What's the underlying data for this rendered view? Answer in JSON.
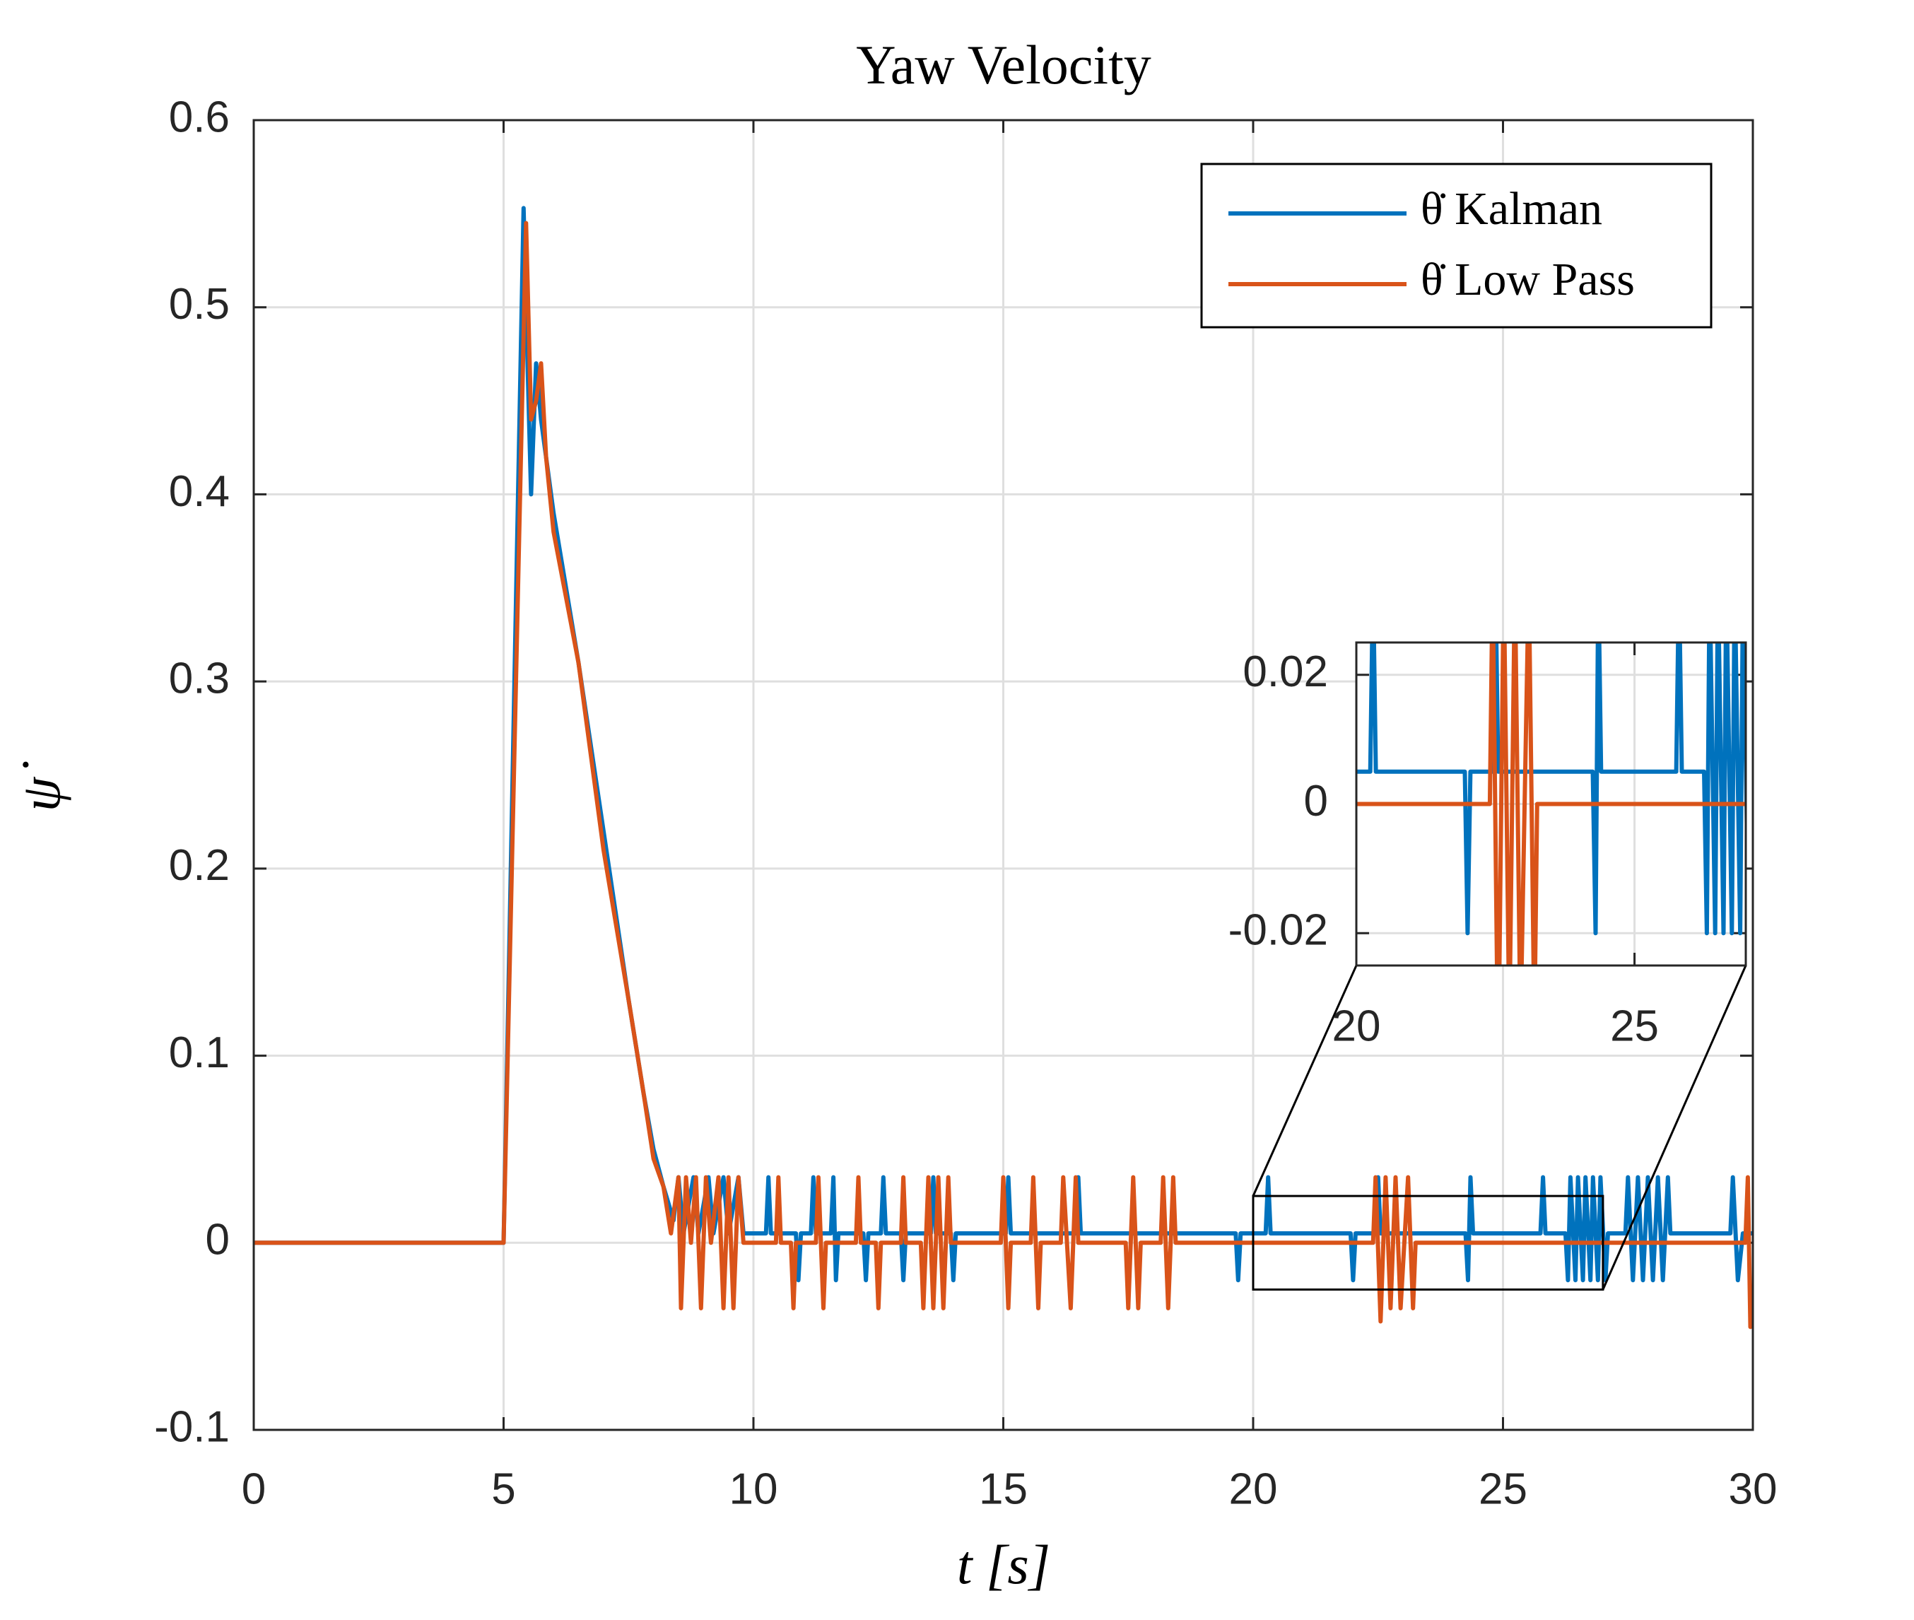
{
  "chart_data": {
    "type": "line",
    "title": "Yaw Velocity",
    "x_label": "t [s]",
    "y_label": "ψ̇",
    "xlim": [
      0,
      30
    ],
    "ylim": [
      -0.1,
      0.6
    ],
    "xticks": [
      0,
      5,
      10,
      15,
      20,
      25,
      30
    ],
    "yticks": [
      -0.1,
      0,
      0.1,
      0.2,
      0.3,
      0.4,
      0.5,
      0.6
    ],
    "grid": true,
    "legend": "upper right",
    "series": [
      {
        "name": "θ̇ Kalman",
        "color": "#0072BD",
        "x": [
          0,
          5,
          5.4,
          5.5,
          5.55,
          5.65,
          5.75,
          6,
          6.5,
          7,
          7.5,
          7.8,
          8,
          8.2,
          8.4,
          8.5,
          8.6,
          8.8,
          8.9,
          9.1,
          9.2,
          9.4,
          9.5,
          9.7,
          9.8,
          10.25,
          10.3,
          10.35,
          10.85,
          10.9,
          10.95,
          11.15,
          11.2,
          11.25,
          11.55,
          11.6,
          11.65,
          11.7,
          12.2,
          12.25,
          12.3,
          12.55,
          12.6,
          12.65,
          12.95,
          13,
          13.05,
          13.55,
          13.6,
          13.65,
          13.95,
          14,
          14.05,
          15.05,
          15.1,
          15.15,
          16.45,
          16.5,
          16.55,
          19.65,
          19.7,
          19.75,
          20.25,
          20.3,
          20.35,
          21.95,
          22,
          22.05,
          22.45,
          22.5,
          22.55,
          24.25,
          24.3,
          24.35,
          24.4,
          25.75,
          25.8,
          25.85,
          26.25,
          26.3,
          26.35,
          26.45,
          26.5,
          26.6,
          26.65,
          26.75,
          26.8,
          26.9,
          26.95,
          27.05,
          27.1,
          27.45,
          27.5,
          27.6,
          27.7,
          27.8,
          27.9,
          28,
          28.1,
          28.2,
          28.3,
          28.35,
          29.55,
          29.6,
          29.7,
          29.8,
          30
        ],
        "values": [
          0,
          0,
          0.553,
          0.45,
          0.4,
          0.47,
          0.44,
          0.39,
          0.31,
          0.22,
          0.13,
          0.08,
          0.05,
          0.03,
          0.012,
          0.035,
          0.005,
          0.035,
          0.005,
          0.035,
          0.005,
          0.035,
          0.005,
          0.035,
          0.005,
          0.005,
          0.035,
          0.005,
          0.005,
          -0.02,
          0.005,
          0.005,
          0.035,
          0.005,
          0.005,
          0.035,
          -0.02,
          0.005,
          0.005,
          -0.02,
          0.005,
          0.005,
          0.035,
          0.005,
          0.005,
          -0.02,
          0.005,
          0.005,
          0.035,
          0.005,
          0.005,
          -0.02,
          0.005,
          0.005,
          0.035,
          0.005,
          0.005,
          0.035,
          0.005,
          0.005,
          -0.02,
          0.005,
          0.005,
          0.035,
          0.005,
          0.005,
          -0.02,
          0.005,
          0.005,
          0.035,
          0.005,
          0.005,
          -0.02,
          0.035,
          0.005,
          0.005,
          0.035,
          0.005,
          0.005,
          -0.02,
          0.035,
          -0.02,
          0.035,
          -0.02,
          0.035,
          -0.02,
          0.035,
          -0.02,
          0.035,
          -0.02,
          0.005,
          0.005,
          0.035,
          -0.02,
          0.035,
          -0.02,
          0.035,
          -0.02,
          0.035,
          -0.02,
          0.035,
          0.005,
          0.005,
          0.035,
          -0.02,
          0.005,
          0.005
        ]
      },
      {
        "name": "θ̇ Low Pass",
        "color": "#D95319",
        "x": [
          0,
          5,
          5.45,
          5.55,
          5.65,
          5.75,
          5.85,
          6,
          6.5,
          7,
          7.5,
          7.8,
          8,
          8.2,
          8.35,
          8.5,
          8.55,
          8.65,
          8.75,
          8.85,
          8.95,
          9.05,
          9.15,
          9.3,
          9.4,
          9.5,
          9.6,
          9.7,
          9.8,
          10.45,
          10.5,
          10.55,
          10.75,
          10.8,
          10.85,
          11.25,
          11.3,
          11.4,
          11.45,
          12.05,
          12.1,
          12.15,
          12.45,
          12.5,
          12.55,
          12.95,
          13,
          13.05,
          13.35,
          13.4,
          13.5,
          13.6,
          13.7,
          13.8,
          13.9,
          13.95,
          14.95,
          15,
          15.1,
          15.15,
          15.55,
          15.6,
          15.7,
          15.75,
          16.15,
          16.2,
          16.35,
          16.45,
          16.5,
          17.45,
          17.5,
          17.6,
          17.7,
          17.75,
          18.15,
          18.2,
          18.3,
          18.4,
          18.45,
          22.4,
          22.45,
          22.55,
          22.65,
          22.75,
          22.85,
          22.95,
          23.1,
          23.2,
          23.25,
          29.85,
          29.9,
          29.95,
          30
        ],
        "values": [
          0,
          0,
          0.545,
          0.44,
          0.45,
          0.47,
          0.42,
          0.38,
          0.31,
          0.21,
          0.13,
          0.08,
          0.045,
          0.03,
          0.005,
          0.035,
          -0.035,
          0.035,
          0,
          0.035,
          -0.035,
          0.035,
          0,
          0.035,
          -0.035,
          0.035,
          -0.035,
          0.035,
          0,
          0,
          0.035,
          0,
          0,
          -0.035,
          0,
          0,
          0.035,
          -0.035,
          0,
          0,
          0.035,
          0,
          0,
          -0.035,
          0,
          0,
          0.035,
          0,
          0,
          -0.035,
          0.035,
          -0.035,
          0.035,
          -0.035,
          0.035,
          0,
          0,
          0.035,
          -0.035,
          0,
          0,
          0.035,
          -0.035,
          0,
          0,
          0.035,
          -0.035,
          0.035,
          0,
          0,
          -0.035,
          0.035,
          -0.035,
          0,
          0,
          0.035,
          -0.035,
          0.035,
          0,
          0,
          0.035,
          -0.042,
          0.035,
          -0.035,
          0.035,
          -0.035,
          0.035,
          -0.035,
          0,
          0,
          0.035,
          -0.045,
          -0.03
        ]
      }
    ],
    "inset": {
      "xlim": [
        20,
        27
      ],
      "ylim": [
        -0.025,
        0.025
      ],
      "xticks": [
        20,
        25
      ],
      "yticks": [
        -0.02,
        0,
        0.02
      ]
    }
  }
}
